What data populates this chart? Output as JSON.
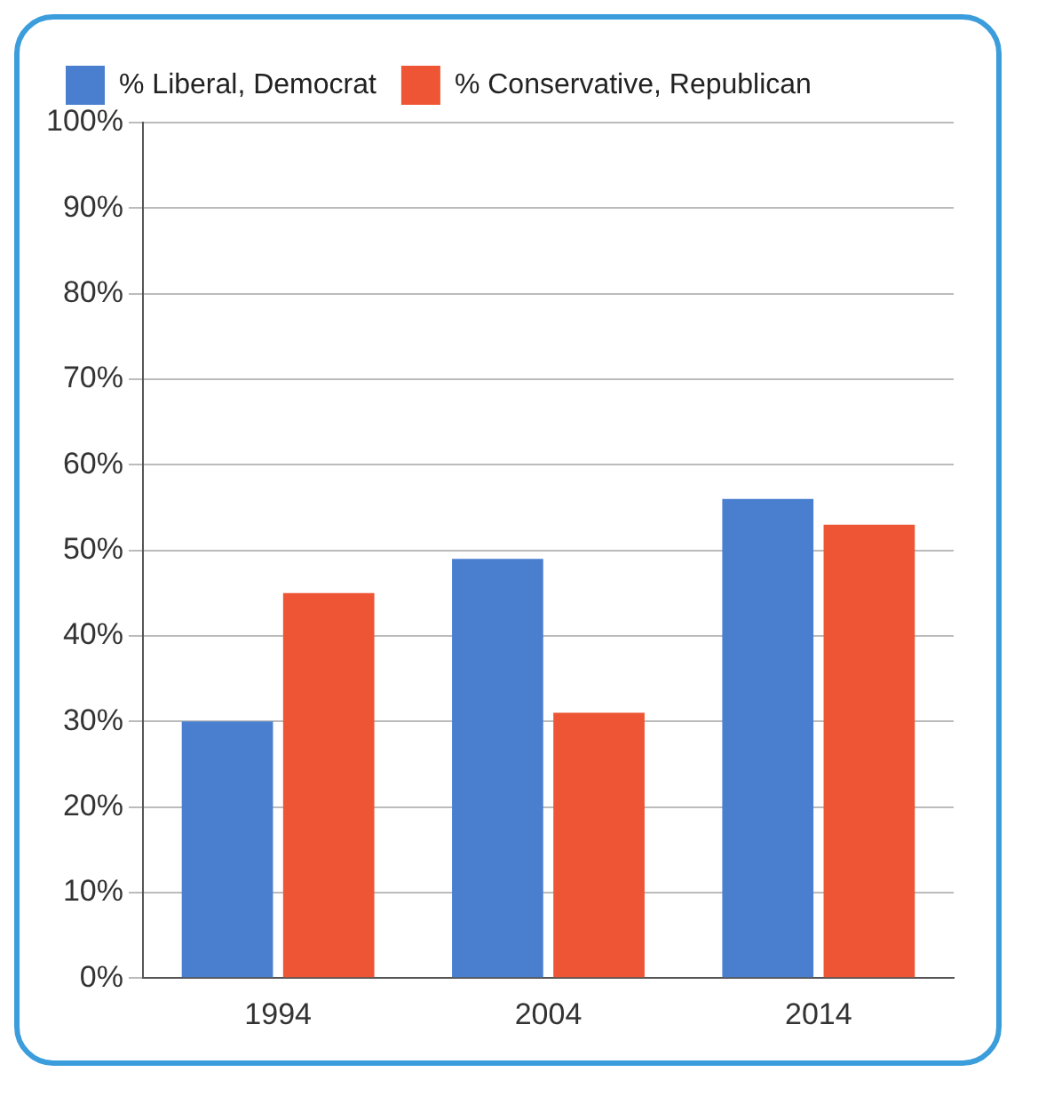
{
  "chart_data": {
    "type": "bar",
    "categories": [
      "1994",
      "2004",
      "2014"
    ],
    "series": [
      {
        "name": "% Liberal, Democrat",
        "color": "#4a7fd0",
        "values": [
          30,
          49,
          56
        ]
      },
      {
        "name": "% Conservative, Republican",
        "color": "#ee5535",
        "values": [
          45,
          31,
          53
        ]
      }
    ],
    "ylim": [
      0,
      100
    ],
    "yticks": [
      {
        "value": 0,
        "label": "0%"
      },
      {
        "value": 10,
        "label": "10%"
      },
      {
        "value": 20,
        "label": "20%"
      },
      {
        "value": 30,
        "label": "30%"
      },
      {
        "value": 40,
        "label": "40%"
      },
      {
        "value": 50,
        "label": "50%"
      },
      {
        "value": 60,
        "label": "60%"
      },
      {
        "value": 70,
        "label": "70%"
      },
      {
        "value": 80,
        "label": "80%"
      },
      {
        "value": 90,
        "label": "90%"
      },
      {
        "value": 100,
        "label": "100%"
      }
    ],
    "grid": "y",
    "legend": "top left"
  }
}
